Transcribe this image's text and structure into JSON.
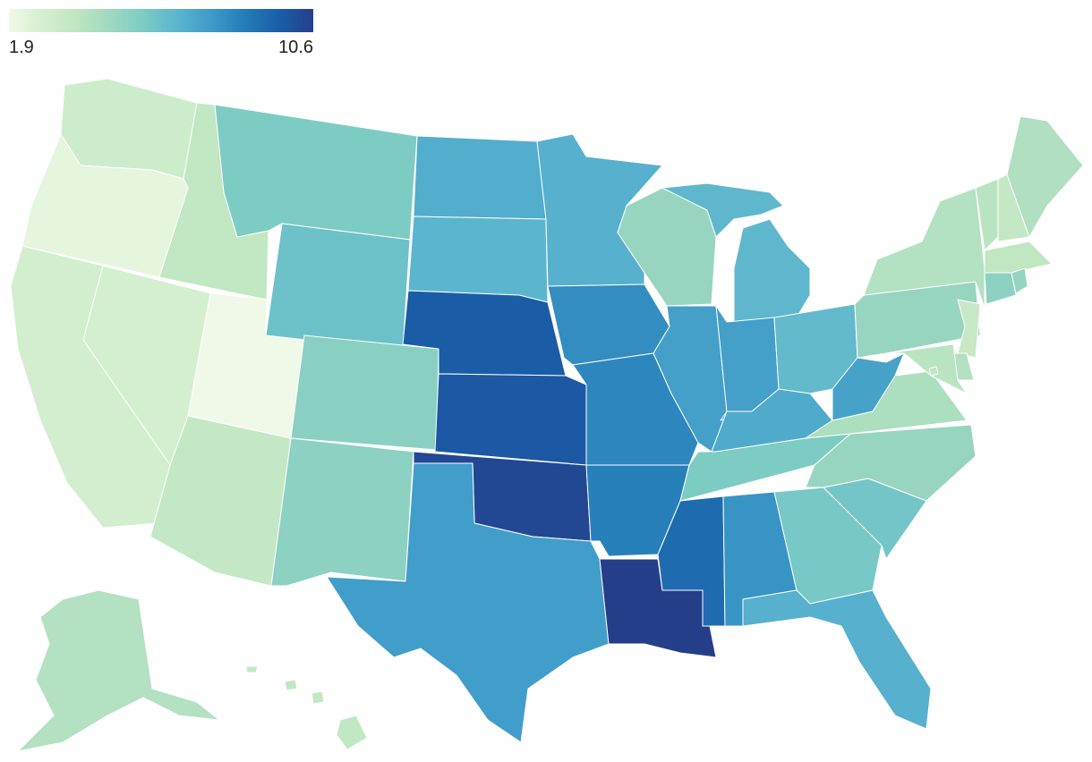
{
  "legend": {
    "min_label": "1.9",
    "max_label": "10.6",
    "min": 1.9,
    "max": 10.6,
    "colors": [
      "#f0f9e8",
      "#d5efd0",
      "#bfe6c1",
      "#9fd8c0",
      "#7bcbc4",
      "#5bb4cf",
      "#3e9ac8",
      "#237bb8",
      "#1a5ea8",
      "#253e8a"
    ]
  },
  "states": {
    "WA": 3.2,
    "OR": 2.3,
    "CA": 3.0,
    "NV": 2.9,
    "ID": 3.7,
    "UT": 1.9,
    "AZ": 3.6,
    "MT": 5.7,
    "WY": 6.2,
    "CO": 5.4,
    "NM": 5.3,
    "ND": 7.0,
    "SD": 6.7,
    "NE": 9.7,
    "KS": 9.8,
    "OK": 10.3,
    "TX": 7.6,
    "MN": 6.9,
    "IA": 8.1,
    "MO": 8.3,
    "AR": 8.5,
    "LA": 10.6,
    "WI": 5.0,
    "IL": 7.5,
    "MI": 6.6,
    "IN": 7.5,
    "OH": 6.5,
    "KY": 7.1,
    "TN": 5.7,
    "MS": 9.2,
    "AL": 7.9,
    "GA": 5.9,
    "FL": 6.9,
    "SC": 6.0,
    "NC": 5.0,
    "VA": 4.4,
    "WV": 7.4,
    "PA": 5.0,
    "NY": 4.2,
    "VT": 4.0,
    "NH": 3.6,
    "ME": 4.3,
    "MA": 3.8,
    "CT": 5.3,
    "RI": 5.1,
    "NJ": 3.5,
    "DE": 4.2,
    "MD": 4.0,
    "DC": 3.9,
    "AK": 4.2,
    "HI": 3.7
  }
}
